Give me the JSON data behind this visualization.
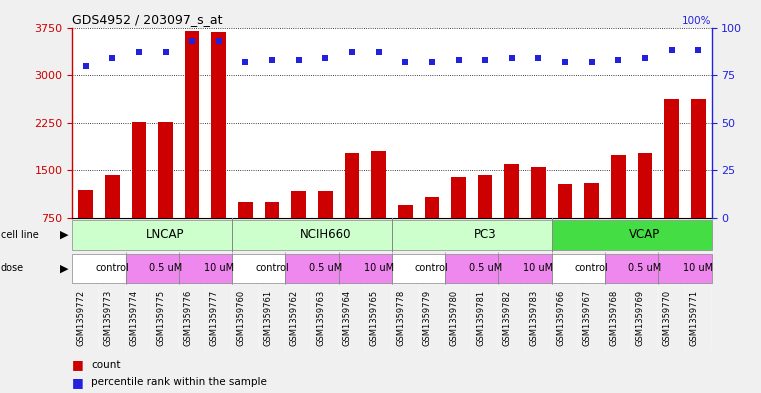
{
  "title": "GDS4952 / 203097_s_at",
  "samples": [
    "GSM1359772",
    "GSM1359773",
    "GSM1359774",
    "GSM1359775",
    "GSM1359776",
    "GSM1359777",
    "GSM1359760",
    "GSM1359761",
    "GSM1359762",
    "GSM1359763",
    "GSM1359764",
    "GSM1359765",
    "GSM1359778",
    "GSM1359779",
    "GSM1359780",
    "GSM1359781",
    "GSM1359782",
    "GSM1359783",
    "GSM1359766",
    "GSM1359767",
    "GSM1359768",
    "GSM1359769",
    "GSM1359770",
    "GSM1359771"
  ],
  "counts": [
    1200,
    1430,
    2260,
    2260,
    3700,
    3680,
    1000,
    1010,
    1170,
    1170,
    1780,
    1800,
    960,
    1090,
    1390,
    1430,
    1600,
    1560,
    1290,
    1300,
    1750,
    1780,
    2620,
    2620
  ],
  "percentile_ranks": [
    80,
    84,
    87,
    87,
    93,
    93,
    82,
    83,
    83,
    84,
    87,
    87,
    82,
    82,
    83,
    83,
    84,
    84,
    82,
    82,
    83,
    84,
    88,
    88
  ],
  "cell_line_groups": [
    {
      "label": "LNCAP",
      "start": 0,
      "end": 6,
      "color": "#ccffcc"
    },
    {
      "label": "NCIH660",
      "start": 6,
      "end": 12,
      "color": "#ccffcc"
    },
    {
      "label": "PC3",
      "start": 12,
      "end": 18,
      "color": "#ccffcc"
    },
    {
      "label": "VCAP",
      "start": 18,
      "end": 24,
      "color": "#44dd44"
    }
  ],
  "dose_groups": [
    {
      "label": "control",
      "start": 0,
      "end": 2,
      "color": "#ffffff"
    },
    {
      "label": "0.5 uM",
      "start": 2,
      "end": 4,
      "color": "#ee88ee"
    },
    {
      "label": "10 uM",
      "start": 4,
      "end": 6,
      "color": "#ee88ee"
    },
    {
      "label": "control",
      "start": 6,
      "end": 8,
      "color": "#ffffff"
    },
    {
      "label": "0.5 uM",
      "start": 8,
      "end": 10,
      "color": "#ee88ee"
    },
    {
      "label": "10 uM",
      "start": 10,
      "end": 12,
      "color": "#ee88ee"
    },
    {
      "label": "control",
      "start": 12,
      "end": 14,
      "color": "#ffffff"
    },
    {
      "label": "0.5 uM",
      "start": 14,
      "end": 16,
      "color": "#ee88ee"
    },
    {
      "label": "10 uM",
      "start": 16,
      "end": 18,
      "color": "#ee88ee"
    },
    {
      "label": "control",
      "start": 18,
      "end": 20,
      "color": "#ffffff"
    },
    {
      "label": "0.5 uM",
      "start": 20,
      "end": 22,
      "color": "#ee88ee"
    },
    {
      "label": "10 uM",
      "start": 22,
      "end": 24,
      "color": "#ee88ee"
    }
  ],
  "ylim_left": [
    750,
    3750
  ],
  "ylim_right": [
    0,
    100
  ],
  "yticks_left": [
    750,
    1500,
    2250,
    3000,
    3750
  ],
  "yticks_right": [
    0,
    25,
    50,
    75,
    100
  ],
  "bar_color": "#cc0000",
  "dot_color": "#2222dd",
  "fig_bg": "#f0f0f0",
  "plot_bg": "#ffffff",
  "xtick_bg": "#cccccc",
  "left_axis_color": "#cc0000",
  "right_axis_color": "#2222dd"
}
